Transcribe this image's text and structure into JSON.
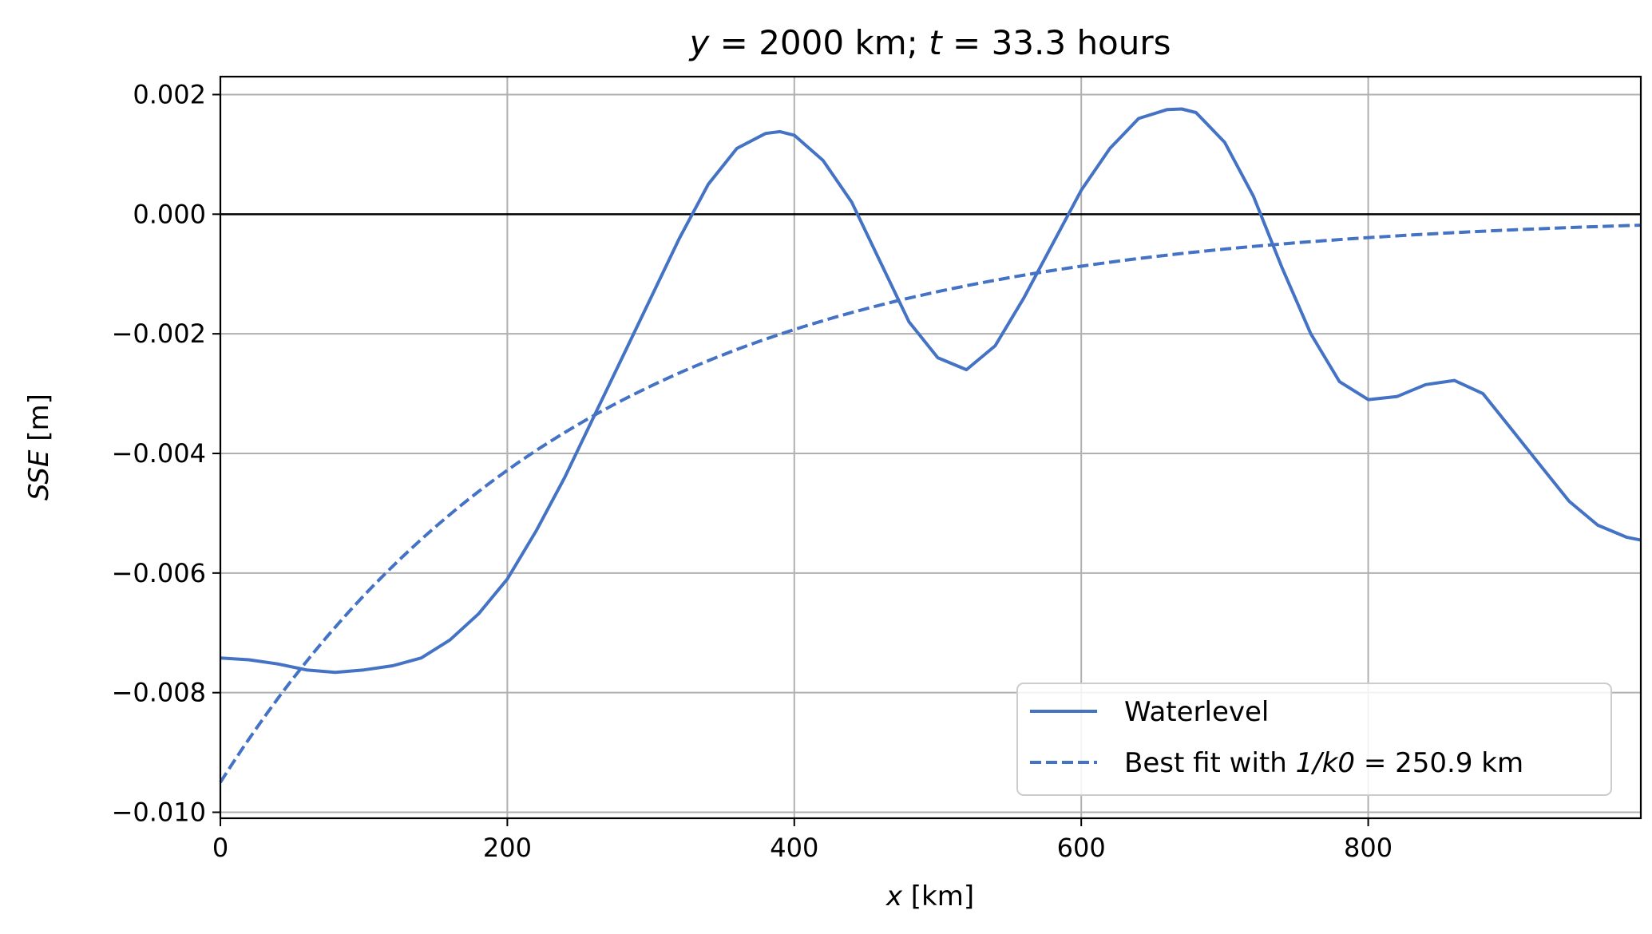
{
  "chart_data": {
    "type": "line",
    "title": {
      "y_var": "y",
      "y_value": "= 2000 km;",
      "t_var": "t",
      "t_value": "= 33.3 hours"
    },
    "xlabel": {
      "var": "x",
      "unit": " [km]"
    },
    "ylabel": {
      "var": "SSE",
      "unit": " [m]"
    },
    "xlim": [
      0,
      990
    ],
    "ylim": [
      -0.0101,
      0.0023
    ],
    "xticks": [
      0,
      200,
      400,
      600,
      800
    ],
    "xtick_labels": [
      "0",
      "200",
      "400",
      "600",
      "800"
    ],
    "yticks": [
      0.002,
      0.0,
      -0.002,
      -0.004,
      -0.006,
      -0.008,
      -0.01
    ],
    "ytick_labels": [
      "0.002",
      "0.000",
      "−0.002",
      "−0.004",
      "−0.006",
      "−0.008",
      "−0.010"
    ],
    "grid": true,
    "hline_y": 0.0,
    "line_color": "#4472c4",
    "legend_position": "lower right",
    "series": [
      {
        "name": "Waterlevel",
        "style": "solid",
        "x": [
          0,
          20,
          40,
          60,
          80,
          100,
          120,
          140,
          160,
          180,
          200,
          220,
          240,
          260,
          280,
          300,
          320,
          340,
          360,
          380,
          390,
          400,
          420,
          440,
          460,
          480,
          500,
          520,
          540,
          560,
          580,
          600,
          620,
          640,
          660,
          670,
          680,
          700,
          720,
          740,
          760,
          780,
          800,
          820,
          840,
          860,
          880,
          900,
          920,
          940,
          960,
          980,
          990
        ],
        "y": [
          -0.00742,
          -0.00745,
          -0.00752,
          -0.00762,
          -0.00766,
          -0.00762,
          -0.00755,
          -0.00742,
          -0.00712,
          -0.00668,
          -0.0061,
          -0.0053,
          -0.0044,
          -0.0034,
          -0.0024,
          -0.0014,
          -0.0004,
          0.0005,
          0.0011,
          0.00135,
          0.00138,
          0.00132,
          0.0009,
          0.0002,
          -0.0008,
          -0.0018,
          -0.0024,
          -0.0026,
          -0.0022,
          -0.0014,
          -0.0005,
          0.0004,
          0.0011,
          0.0016,
          0.00175,
          0.00176,
          0.0017,
          0.0012,
          0.0003,
          -0.0009,
          -0.002,
          -0.0028,
          -0.0031,
          -0.00305,
          -0.00285,
          -0.00278,
          -0.003,
          -0.0036,
          -0.0042,
          -0.0048,
          -0.0052,
          -0.0054,
          -0.00545
        ]
      },
      {
        "name": "Best fit with ",
        "name_math": "1/k0",
        "name_suffix": " = 250.9 km",
        "style": "dashed",
        "fit": {
          "amplitude": -0.0095,
          "length_scale_km": 250.9
        }
      }
    ]
  }
}
